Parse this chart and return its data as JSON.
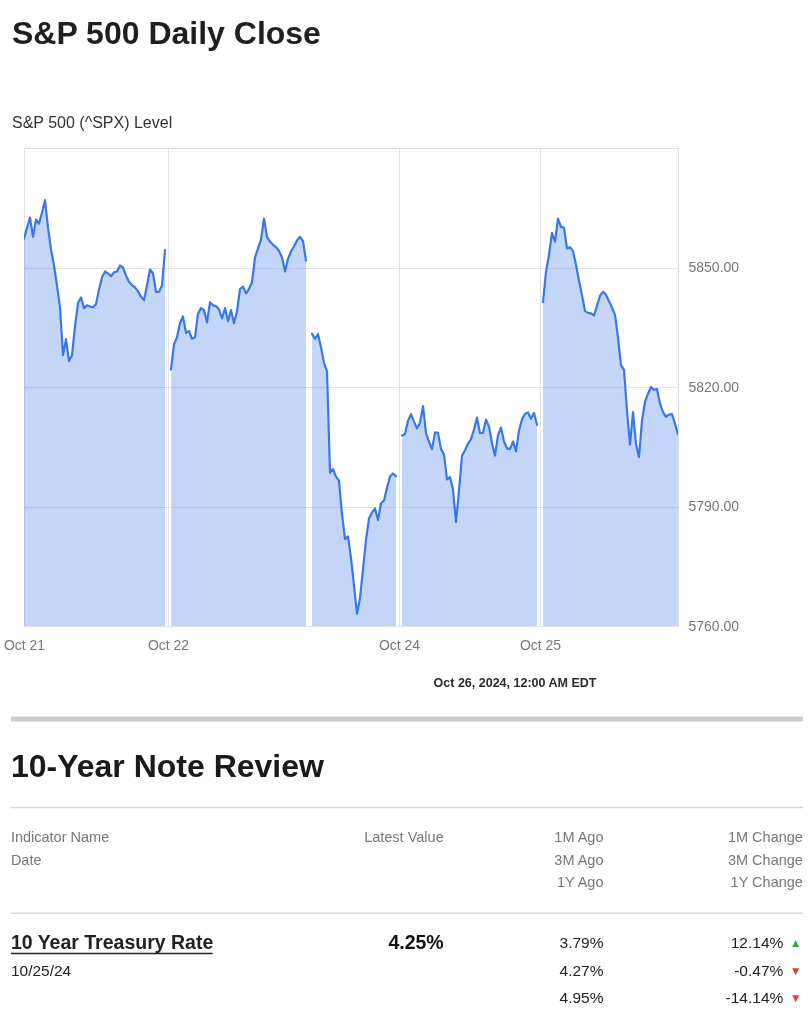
{
  "chart_data": [
    {
      "type": "area",
      "title": "S&P 500 Daily Close",
      "subtitle": "S&P 500 (^SPX) Level",
      "categories": [
        "Oct 21",
        null,
        null,
        null,
        null,
        null,
        null,
        null,
        null,
        null,
        null,
        null,
        null,
        null,
        null,
        null,
        null,
        null,
        null,
        null,
        null,
        null,
        null,
        null,
        null,
        null,
        null,
        null,
        null,
        null,
        null,
        null,
        null,
        null,
        null,
        null,
        null,
        null,
        null,
        null,
        null,
        null,
        null,
        null,
        null,
        null,
        null,
        null,
        "Oct 22",
        null,
        null,
        null,
        null,
        null,
        null,
        null,
        null,
        null,
        null,
        null,
        null,
        null,
        null,
        null,
        null,
        null,
        null,
        null,
        null,
        null,
        null,
        null,
        null,
        null,
        null,
        null,
        null,
        null,
        null,
        null,
        null,
        null,
        null,
        null,
        null,
        null,
        null,
        null,
        null,
        null,
        null,
        null,
        null,
        null,
        null,
        null,
        null,
        null,
        null,
        null,
        null,
        null,
        null,
        null,
        null,
        null,
        null,
        null,
        null,
        null,
        null,
        null,
        null,
        null,
        null,
        null,
        null,
        null,
        null,
        null,
        null,
        null,
        null,
        null,
        null,
        "Oct 24",
        null,
        null,
        null,
        null,
        null,
        null,
        null,
        null,
        null,
        null,
        null,
        null,
        null,
        null,
        null,
        null,
        null,
        null,
        null,
        null,
        null,
        null,
        null,
        null,
        null,
        null,
        null,
        null,
        null,
        null,
        null,
        null,
        null,
        null,
        null,
        null,
        null,
        null,
        null,
        null,
        null,
        null,
        null,
        null,
        null,
        null,
        "Oct 25",
        null,
        null,
        null,
        null,
        null,
        null,
        null,
        null,
        null,
        null,
        null,
        null,
        null,
        null,
        null,
        null,
        null,
        null,
        null,
        null,
        null,
        null,
        null,
        null,
        null,
        null,
        null,
        null,
        null,
        null,
        null,
        null,
        null,
        null,
        null,
        null,
        null,
        null,
        null,
        null,
        null,
        null,
        null,
        null,
        null,
        null
      ],
      "series": [
        {
          "color": "#3b78e7",
          "values": [
            5857.2,
            5860.0,
            5862.5,
            5857.7,
            5862.0,
            5861.0,
            5863.8,
            5866.9,
            5860.0,
            5854.6,
            5850.5,
            5845.5,
            5840.0,
            5828.0,
            5832.0,
            5826.5,
            5828.0,
            5835.2,
            5841.0,
            5842.5,
            5839.8,
            5840.5,
            5840.2,
            5840.0,
            5840.8,
            5844.5,
            5847.5,
            5849.0,
            5848.5,
            5847.8,
            5848.8,
            5849.0,
            5850.5,
            5850.0,
            5848.0,
            5846.4,
            5845.6,
            5845.0,
            5844.0,
            5842.7,
            5841.8,
            5845.5,
            5849.5,
            5848.5,
            5843.9,
            5843.9,
            5845.5,
            5854.4,
            null,
            5824.4,
            5830.7,
            5832.5,
            5836.0,
            5837.7,
            5833.6,
            5834.1,
            5832.1,
            5832.5,
            5838.4,
            5839.8,
            5839.3,
            5836.2,
            5841.3,
            5840.5,
            5840.3,
            5839.5,
            5837.2,
            5839.8,
            5836.5,
            5839.3,
            5836.0,
            5839.0,
            5844.6,
            5845.2,
            5843.5,
            5844.6,
            5846.3,
            5852.5,
            5854.8,
            5857.0,
            5862.3,
            5857.7,
            5856.5,
            5855.7,
            5855.1,
            5854.2,
            5852.5,
            5849.0,
            5852.2,
            5854.0,
            5855.3,
            5856.8,
            5857.7,
            5856.6,
            5851.7,
            null,
            5833.4,
            5832.1,
            5833.3,
            5830.0,
            5826.0,
            5824.0,
            5798.5,
            5799.4,
            5797.5,
            5796.5,
            5788.1,
            5781.8,
            5782.5,
            5777.0,
            5770.2,
            5763.1,
            5767.0,
            5774.3,
            5781.6,
            5787.0,
            5788.5,
            5789.5,
            5786.6,
            5790.8,
            5791.5,
            5794.7,
            5797.6,
            5798.3,
            5797.6,
            null,
            5807.8,
            5808.2,
            5811.5,
            5813.2,
            5811.3,
            5809.6,
            5811.0,
            5815.2,
            5808.4,
            5806.2,
            5804.4,
            5808.6,
            5808.5,
            5804.4,
            5803.0,
            5796.8,
            5797.4,
            5794.3,
            5786.1,
            5794.0,
            5802.8,
            5804.1,
            5805.8,
            5806.9,
            5809.3,
            5812.3,
            5808.4,
            5808.5,
            5811.8,
            5810.1,
            5805.9,
            5802.8,
            5807.9,
            5809.8,
            5806.3,
            5804.6,
            5804.4,
            5806.3,
            5803.8,
            5809.1,
            5811.9,
            5813.3,
            5813.6,
            5812.0,
            5813.5,
            5810.5,
            null,
            5841.3,
            5848.9,
            5853.2,
            5858.7,
            5856.5,
            5862.3,
            5860.2,
            5860.0,
            5854.8,
            5855.1,
            5854.1,
            5850.7,
            5846.7,
            5843.1,
            5839.1,
            5838.6,
            5838.5,
            5838.0,
            5840.4,
            5842.9,
            5843.9,
            5843.2,
            5841.5,
            5840.0,
            5838.1,
            5832.4,
            5825.5,
            5824.3,
            5814.1,
            5805.5,
            5813.7,
            5805.7,
            5802.4,
            5811.6,
            5816.3,
            5818.3,
            5820.0,
            5819.3,
            5819.5,
            5815.8,
            5813.7,
            5812.5,
            5813.1,
            5813.2,
            5810.8,
            5808.1
          ]
        }
      ],
      "ylim": [
        5760,
        5880
      ],
      "yticks": [
        {
          "value": 5760,
          "label": "5760.00"
        },
        {
          "value": 5790,
          "label": "5790.00"
        },
        {
          "value": 5820,
          "label": "5820.00"
        },
        {
          "value": 5850,
          "label": "5850.00"
        }
      ],
      "grid": true,
      "annotations": [
        "Oct 26, 2024, 12:00 AM EDT"
      ]
    },
    {
      "type": "other",
      "title": "10-Year Note Review",
      "annotations": [
        "Indicator Name",
        "Date",
        "Latest Value",
        "1M Ago",
        "3M Ago",
        "1Y Ago",
        "1M Change",
        "3M Change",
        "1Y Change",
        "10 Year Treasury Rate",
        "10/25/24",
        "4.25%",
        "3.79%",
        "4.27%",
        "4.95%",
        "12.14%",
        "-0.47%",
        "-14.14%",
        "▲",
        "▼",
        "▼"
      ]
    }
  ]
}
